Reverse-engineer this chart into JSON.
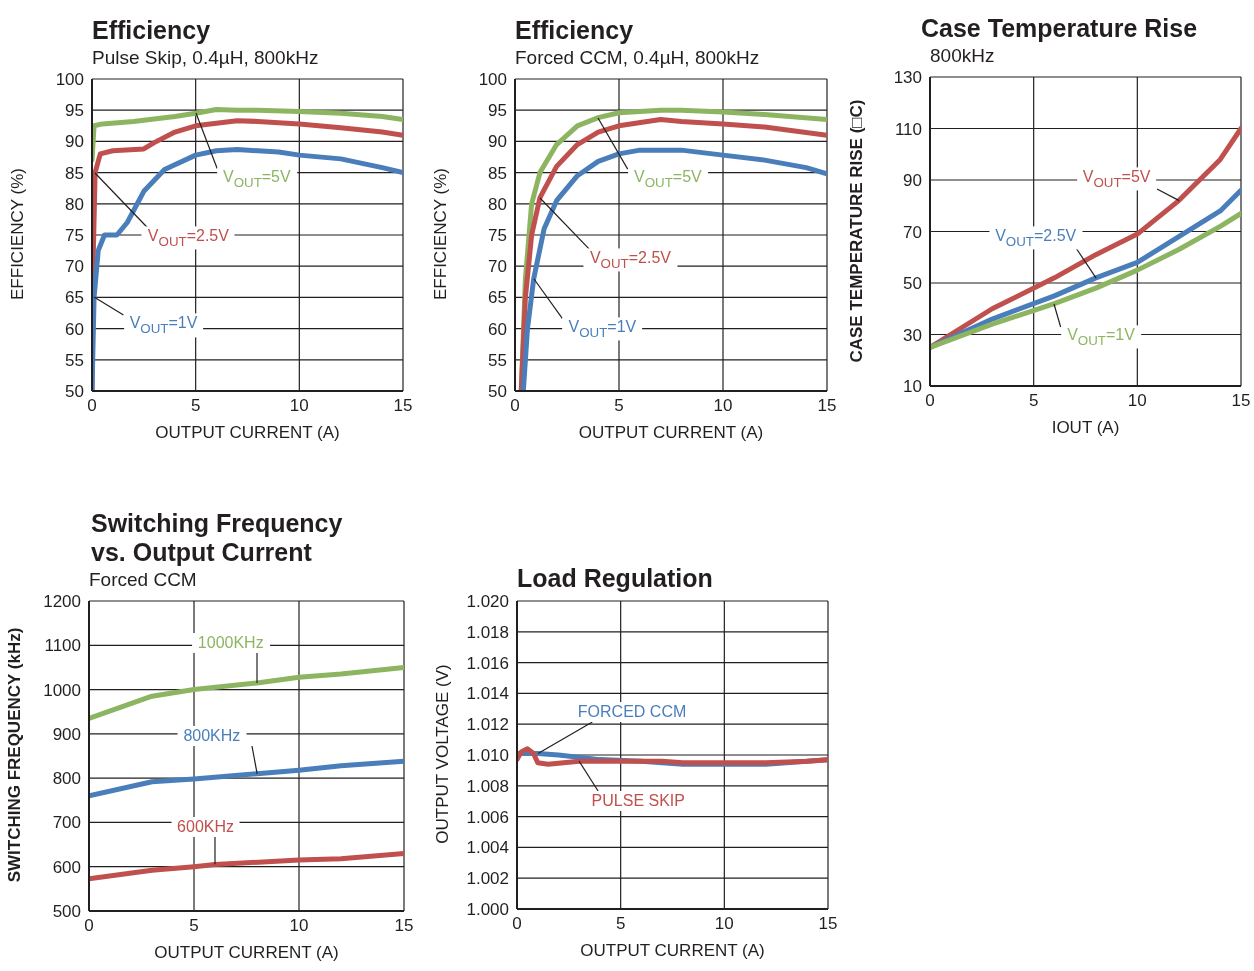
{
  "chart_data": [
    {
      "type": "line",
      "title": "Efficiency",
      "subtitle": "Pulse Skip, 0.4µH, 800kHz",
      "xlabel": "OUTPUT CURRENT (A)",
      "ylabel": "EFFICIENCY (%)",
      "xlim": [
        0,
        15
      ],
      "xticks": [
        0,
        5,
        10,
        15
      ],
      "ylim": [
        50,
        100
      ],
      "yticks": [
        50,
        55,
        60,
        65,
        70,
        75,
        80,
        85,
        90,
        95,
        100
      ],
      "grid": true,
      "series": [
        {
          "name": "V$_{OUT}$=5V",
          "color": "#8db561",
          "x": [
            0,
            0.1,
            0.5,
            2,
            4,
            5,
            6,
            7,
            8,
            10,
            12,
            14,
            15
          ],
          "values": [
            87,
            92.5,
            92.8,
            93.2,
            94,
            94.5,
            95.1,
            95,
            95,
            94.8,
            94.5,
            94,
            93.5
          ]
        },
        {
          "name": "V$_{OUT}$=2.5V",
          "color": "#c0504d",
          "x": [
            0,
            0.05,
            0.15,
            0.4,
            1,
            2.5,
            3,
            4,
            5,
            7,
            8,
            10,
            12,
            14,
            15
          ],
          "values": [
            50,
            70,
            85,
            88,
            88.5,
            88.8,
            89.8,
            91.5,
            92.5,
            93.3,
            93.2,
            92.8,
            92.2,
            91.5,
            91
          ]
        },
        {
          "name": "V$_{OUT}$=1V",
          "color": "#4a7ebb",
          "x": [
            0,
            0.1,
            0.3,
            0.6,
            1.2,
            1.7,
            2.5,
            3.5,
            5,
            6,
            7,
            8,
            9,
            10,
            12,
            14,
            15
          ],
          "values": [
            50,
            65,
            72.5,
            75,
            75,
            77,
            82,
            85.5,
            87.8,
            88.5,
            88.7,
            88.5,
            88.3,
            87.8,
            87.2,
            85.8,
            85
          ]
        }
      ]
    },
    {
      "type": "line",
      "title": "Efficiency",
      "subtitle": "Forced CCM, 0.4µH, 800kHz",
      "xlabel": "OUTPUT CURRENT (A)",
      "ylabel": "EFFICIENCY (%)",
      "xlim": [
        0,
        15
      ],
      "xticks": [
        0,
        5,
        10,
        15
      ],
      "ylim": [
        50,
        100
      ],
      "yticks": [
        50,
        55,
        60,
        65,
        70,
        75,
        80,
        85,
        90,
        95,
        100
      ],
      "grid": true,
      "series": [
        {
          "name": "V$_{OUT}$=5V",
          "color": "#8db561",
          "x": [
            0.3,
            0.5,
            0.8,
            1.2,
            2,
            3,
            4,
            5,
            7,
            8,
            10,
            12,
            15
          ],
          "values": [
            50,
            68,
            80,
            85,
            89.5,
            92.5,
            93.8,
            94.6,
            95,
            95,
            94.7,
            94.3,
            93.5
          ]
        },
        {
          "name": "V$_{OUT}$=2.5V",
          "color": "#c0504d",
          "x": [
            0.3,
            0.5,
            0.8,
            1.2,
            2,
            3,
            4,
            5,
            7,
            8,
            10,
            12,
            15
          ],
          "values": [
            50,
            65,
            75,
            81,
            86,
            89.5,
            91.5,
            92.5,
            93.5,
            93.2,
            92.8,
            92.3,
            91
          ]
        },
        {
          "name": "V$_{OUT}$=1V",
          "color": "#4a7ebb",
          "x": [
            0.4,
            0.6,
            0.9,
            1.4,
            2,
            3,
            4,
            5,
            6,
            8,
            10,
            12,
            14,
            15
          ],
          "values": [
            50,
            60,
            68,
            76,
            80.5,
            84.5,
            86.8,
            88,
            88.6,
            88.6,
            87.8,
            87,
            85.8,
            84.8
          ]
        }
      ]
    },
    {
      "type": "line",
      "title": "Case Temperature Rise",
      "subtitle": "800kHz",
      "xlabel": "IOUT (A)",
      "ylabel": "CASE TEMPERATURE RISE (□C)",
      "xlim": [
        0,
        15
      ],
      "xticks": [
        0,
        5,
        10,
        15
      ],
      "ylim": [
        10,
        130
      ],
      "yticks": [
        10,
        30,
        50,
        70,
        90,
        110,
        130
      ],
      "grid": true,
      "series": [
        {
          "name": "V$_{OUT}$=5V",
          "color": "#c0504d",
          "x": [
            0,
            3,
            6,
            8,
            10,
            12,
            14,
            15
          ],
          "values": [
            25,
            40,
            52,
            61,
            69,
            82,
            98,
            110
          ]
        },
        {
          "name": "V$_{OUT}$=2.5V",
          "color": "#4a7ebb",
          "x": [
            0,
            3,
            6,
            8,
            10,
            12,
            14,
            15
          ],
          "values": [
            25,
            36,
            45,
            52,
            58,
            68,
            78,
            86
          ]
        },
        {
          "name": "V$_{OUT}$=1V",
          "color": "#8db561",
          "x": [
            0,
            3,
            6,
            8,
            10,
            12,
            14,
            15
          ],
          "values": [
            25,
            34,
            42,
            48,
            55,
            63,
            72,
            77
          ]
        }
      ]
    },
    {
      "type": "line",
      "title": "Switching Frequency\nvs. Output Current",
      "subtitle": "Forced CCM",
      "xlabel": "OUTPUT CURRENT (A)",
      "ylabel": "SWITCHING FREQUENCY (kHz)",
      "xlim": [
        0,
        15
      ],
      "xticks": [
        0,
        5,
        10,
        15
      ],
      "ylim": [
        500,
        1200
      ],
      "yticks": [
        500,
        600,
        700,
        800,
        900,
        1000,
        1100,
        1200
      ],
      "grid": true,
      "series": [
        {
          "name": "1000KHz",
          "color": "#8db561",
          "x": [
            0,
            3,
            5,
            8,
            10,
            12,
            15
          ],
          "values": [
            935,
            985,
            1000,
            1015,
            1028,
            1035,
            1050
          ]
        },
        {
          "name": "800KHz",
          "color": "#4a7ebb",
          "x": [
            0,
            3,
            5,
            8,
            10,
            12,
            15
          ],
          "values": [
            760,
            792,
            798,
            810,
            818,
            828,
            838
          ]
        },
        {
          "name": "600KHz",
          "color": "#c0504d",
          "x": [
            0,
            3,
            5,
            6,
            10,
            12,
            15
          ],
          "values": [
            573,
            592,
            600,
            605,
            615,
            618,
            630
          ]
        }
      ]
    },
    {
      "type": "line",
      "title": "Load Regulation",
      "xlabel": "OUTPUT CURRENT (A)",
      "ylabel": "OUTPUT VOLTAGE (V)",
      "xlim": [
        0,
        15
      ],
      "xticks": [
        0,
        5,
        10,
        15
      ],
      "ylim": [
        1,
        1.02
      ],
      "yticks": [
        {
          "value": 1,
          "label": "1.000"
        },
        {
          "value": 1.002,
          "label": "1.002"
        },
        {
          "value": 1.004,
          "label": "1.004"
        },
        {
          "value": 1.006,
          "label": "1.006"
        },
        {
          "value": 1.008,
          "label": "1.008"
        },
        {
          "value": 1.01,
          "label": "1.010"
        },
        {
          "value": 1.012,
          "label": "1.012"
        },
        {
          "value": 1.014,
          "label": "1.014"
        },
        {
          "value": 1.016,
          "label": "1.016"
        },
        {
          "value": 1.018,
          "label": "1.018"
        },
        {
          "value": 1.02,
          "label": "1.020"
        }
      ],
      "grid": true,
      "series": [
        {
          "name": "FORCED CCM",
          "color": "#4a7ebb",
          "x": [
            0,
            1,
            2,
            4,
            6,
            8,
            10,
            12,
            15
          ],
          "values": [
            1.0101,
            1.0101,
            1.01,
            1.0097,
            1.0096,
            1.0094,
            1.0094,
            1.0094,
            1.0097
          ]
        },
        {
          "name": "PULSE SKIP",
          "color": "#c0504d",
          "x": [
            0,
            0.2,
            0.5,
            0.8,
            1,
            1.5,
            3,
            5,
            7,
            8,
            10,
            12,
            14,
            15
          ],
          "values": [
            1.0097,
            1.0102,
            1.0104,
            1.0101,
            1.0095,
            1.0094,
            1.0096,
            1.0096,
            1.0096,
            1.0095,
            1.0095,
            1.0095,
            1.0096,
            1.0097
          ]
        }
      ]
    }
  ]
}
